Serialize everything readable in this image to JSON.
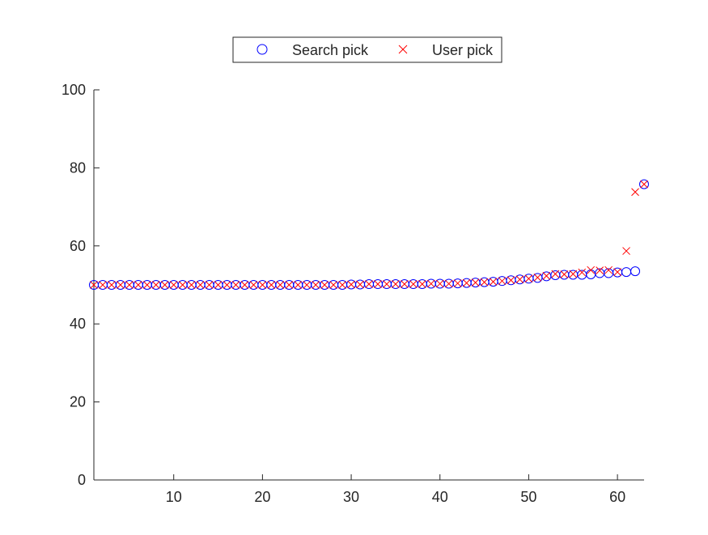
{
  "chart_data": {
    "type": "scatter",
    "title": "",
    "xlabel": "",
    "ylabel": "",
    "xlim": [
      1,
      63
    ],
    "ylim": [
      0,
      100
    ],
    "x_ticks": [
      10,
      20,
      30,
      40,
      50,
      60
    ],
    "y_ticks": [
      0,
      20,
      40,
      60,
      80,
      100
    ],
    "grid": false,
    "legend": {
      "placement": "top-center-outside",
      "orientation": "horizontal"
    },
    "series": [
      {
        "name": "Search pick",
        "marker": "circle",
        "color": "#0000FF",
        "x": [
          1,
          2,
          3,
          4,
          5,
          6,
          7,
          8,
          9,
          10,
          11,
          12,
          13,
          14,
          15,
          16,
          17,
          18,
          19,
          20,
          21,
          22,
          23,
          24,
          25,
          26,
          27,
          28,
          29,
          30,
          31,
          32,
          33,
          34,
          35,
          36,
          37,
          38,
          39,
          40,
          41,
          42,
          43,
          44,
          45,
          46,
          47,
          48,
          49,
          50,
          51,
          52,
          53,
          54,
          55,
          56,
          57,
          58,
          59,
          60,
          61,
          62,
          63
        ],
        "y": [
          50,
          50,
          50,
          50,
          50,
          50,
          50,
          50,
          50,
          50,
          50,
          50,
          50,
          50,
          50,
          50,
          50,
          50,
          50,
          50,
          50,
          50,
          50,
          50,
          50,
          50,
          50,
          50,
          50,
          50.1,
          50.1,
          50.2,
          50.2,
          50.2,
          50.2,
          50.2,
          50.2,
          50.2,
          50.3,
          50.3,
          50.3,
          50.4,
          50.5,
          50.6,
          50.7,
          50.8,
          51,
          51.2,
          51.4,
          51.6,
          51.8,
          52.2,
          52.5,
          52.6,
          52.6,
          52.6,
          52.7,
          53,
          53,
          53.2,
          53.3,
          53.5,
          75.8
        ]
      },
      {
        "name": "User pick",
        "marker": "x",
        "color": "#FF0000",
        "x": [
          1,
          2,
          3,
          4,
          5,
          6,
          7,
          8,
          9,
          10,
          11,
          12,
          13,
          14,
          15,
          16,
          17,
          18,
          19,
          20,
          21,
          22,
          23,
          24,
          25,
          26,
          27,
          28,
          29,
          30,
          31,
          32,
          33,
          34,
          35,
          36,
          37,
          38,
          39,
          40,
          41,
          42,
          43,
          44,
          45,
          46,
          47,
          48,
          49,
          50,
          51,
          52,
          53,
          54,
          55,
          56,
          57,
          58,
          59,
          60,
          61,
          62,
          63
        ],
        "y": [
          50,
          50,
          50,
          50,
          50,
          50,
          50,
          50,
          50,
          50,
          50,
          50,
          50,
          50,
          50,
          50,
          50,
          50,
          50,
          50,
          50,
          50,
          50,
          50,
          50,
          50,
          50,
          50,
          50,
          50.1,
          50.1,
          50.2,
          50.2,
          50.2,
          50.2,
          50.2,
          50.2,
          50.2,
          50.3,
          50.3,
          50.3,
          50.4,
          50.5,
          50.6,
          50.7,
          50.8,
          51,
          51.2,
          51.4,
          51.6,
          51.9,
          52.3,
          52.8,
          52.7,
          52.8,
          53.2,
          53.8,
          53.7,
          53.8,
          53.3,
          58.7,
          73.8,
          75.8
        ]
      }
    ]
  }
}
